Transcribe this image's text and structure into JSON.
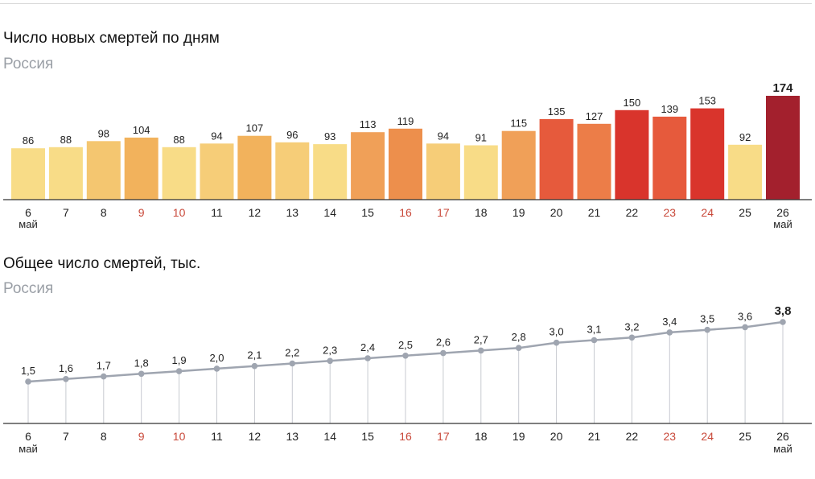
{
  "colors": {
    "baseline": "#333333",
    "line": "#9fa5b0",
    "drop": "#c7cad0",
    "weekend_tick": "#c9493a"
  },
  "chart_data": [
    {
      "type": "bar",
      "title": "Число новых смертей по дням",
      "subtitle": "Россия",
      "categories": [
        "6",
        "7",
        "8",
        "9",
        "10",
        "11",
        "12",
        "13",
        "14",
        "15",
        "16",
        "17",
        "18",
        "19",
        "20",
        "21",
        "22",
        "23",
        "24",
        "25",
        "26"
      ],
      "month_labels": {
        "first": "май",
        "last": "май"
      },
      "weekend_categories": [
        "9",
        "10",
        "16",
        "17",
        "23",
        "24"
      ],
      "values": [
        86,
        88,
        98,
        104,
        88,
        94,
        107,
        96,
        93,
        113,
        119,
        94,
        91,
        115,
        135,
        127,
        150,
        139,
        153,
        92,
        174
      ],
      "value_labels": [
        "86",
        "88",
        "98",
        "104",
        "88",
        "94",
        "107",
        "96",
        "93",
        "113",
        "119",
        "94",
        "91",
        "115",
        "135",
        "127",
        "150",
        "139",
        "153",
        "92",
        "174"
      ],
      "bar_colors": [
        "#f8dc87",
        "#f8dc87",
        "#f4c670",
        "#f2b25c",
        "#f8dc87",
        "#f6cd78",
        "#f2b25c",
        "#f6cd78",
        "#f8dc87",
        "#f0a058",
        "#ed8f4c",
        "#f6cd78",
        "#f8dc87",
        "#f0a058",
        "#e65a3c",
        "#ec7d48",
        "#d9342c",
        "#e65a3c",
        "#d9342c",
        "#f8dc87",
        "#a3202d"
      ],
      "ylim": [
        0,
        180
      ],
      "highlight_last": true
    },
    {
      "type": "line",
      "title": "Общее число смертей, тыс.",
      "subtitle": "Россия",
      "categories": [
        "6",
        "7",
        "8",
        "9",
        "10",
        "11",
        "12",
        "13",
        "14",
        "15",
        "16",
        "17",
        "18",
        "19",
        "20",
        "21",
        "22",
        "23",
        "24",
        "25",
        "26"
      ],
      "month_labels": {
        "first": "май",
        "last": "май"
      },
      "weekend_categories": [
        "9",
        "10",
        "16",
        "17",
        "23",
        "24"
      ],
      "values": [
        1.5,
        1.6,
        1.7,
        1.8,
        1.9,
        2.0,
        2.1,
        2.2,
        2.3,
        2.4,
        2.5,
        2.6,
        2.7,
        2.8,
        3.0,
        3.1,
        3.2,
        3.4,
        3.5,
        3.6,
        3.8
      ],
      "value_labels": [
        "1,5",
        "1,6",
        "1,7",
        "1,8",
        "1,9",
        "2,0",
        "2,1",
        "2,2",
        "2,3",
        "2,4",
        "2,5",
        "2,6",
        "2,7",
        "2,8",
        "3,0",
        "3,1",
        "3,2",
        "3,4",
        "3,5",
        "3,6",
        "3,8"
      ],
      "ylim": [
        0,
        3.8
      ],
      "highlight_last": true
    }
  ]
}
